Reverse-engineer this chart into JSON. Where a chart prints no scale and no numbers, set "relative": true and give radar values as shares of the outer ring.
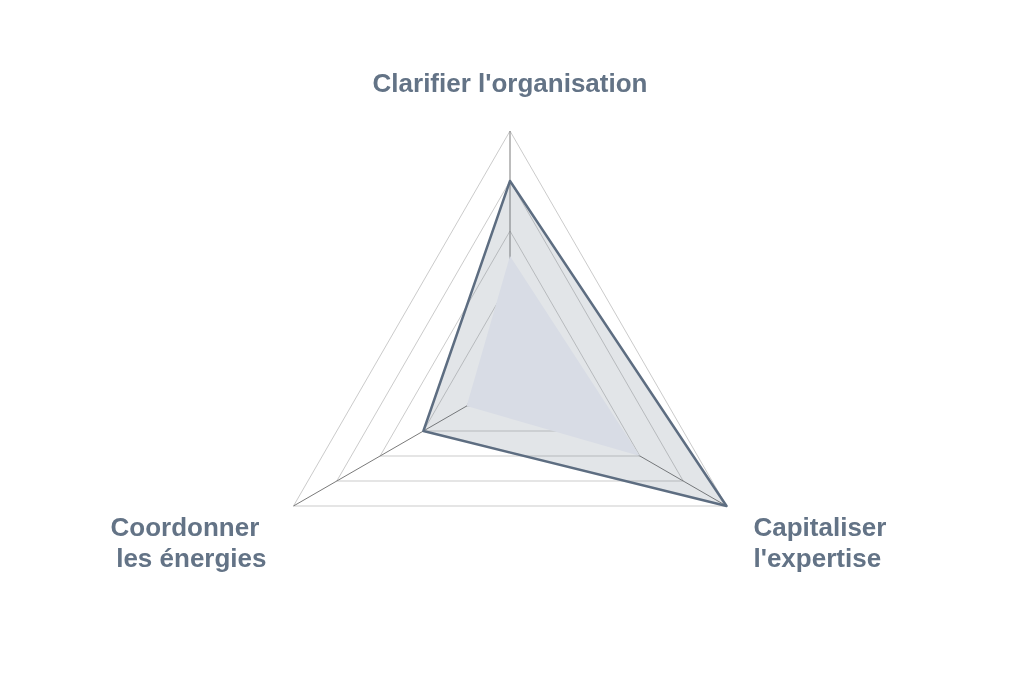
{
  "chart_data": {
    "type": "radar",
    "categories": [
      "Clarifier l'organisation",
      "Capitaliser\nl'expertise",
      "Coordonner \nles énergies"
    ],
    "series": [
      {
        "color": "#5d6d81",
        "values": [
          0.8,
          1.0,
          0.4
        ]
      },
      {
        "color": "#d8dce5",
        "values": [
          0.5,
          0.6,
          0.2
        ]
      }
    ],
    "relative": true,
    "grid": true,
    "legend": false
  }
}
